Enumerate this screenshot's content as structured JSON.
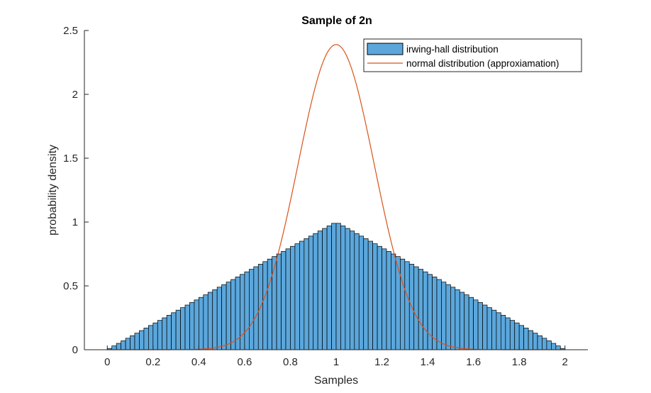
{
  "chart_data": {
    "type": "bar",
    "title": "Sample of 2n",
    "xlabel": "Samples",
    "ylabel": "probability density",
    "xlim": [
      -0.1,
      2.1
    ],
    "ylim": [
      0,
      2.5
    ],
    "xticks": [
      0,
      0.2,
      0.4,
      0.6,
      0.8,
      1,
      1.2,
      1.4,
      1.6,
      1.8,
      2
    ],
    "xtick_labels": [
      "0",
      "0.2",
      "0.4",
      "0.6",
      "0.8",
      "1",
      "1.2",
      "1.4",
      "1.6",
      "1.8",
      "2"
    ],
    "yticks": [
      0,
      0.5,
      1,
      1.5,
      2,
      2.5
    ],
    "ytick_labels": [
      "0",
      "0.5",
      "1",
      "1.5",
      "2",
      "2.5"
    ],
    "grid": false,
    "legend_position": "top-right",
    "series": [
      {
        "name": "irwing-hall distribution",
        "kind": "histogram",
        "bin_width": 0.02,
        "bin_edges_start": 0,
        "bin_edges_end": 2,
        "values": [
          0.01,
          0.03,
          0.05,
          0.07,
          0.09,
          0.11,
          0.13,
          0.15,
          0.17,
          0.19,
          0.21,
          0.23,
          0.25,
          0.27,
          0.29,
          0.31,
          0.33,
          0.35,
          0.37,
          0.39,
          0.41,
          0.43,
          0.45,
          0.47,
          0.49,
          0.51,
          0.53,
          0.55,
          0.57,
          0.59,
          0.61,
          0.63,
          0.65,
          0.67,
          0.69,
          0.71,
          0.73,
          0.75,
          0.77,
          0.79,
          0.81,
          0.83,
          0.85,
          0.87,
          0.89,
          0.91,
          0.93,
          0.95,
          0.97,
          0.99,
          0.99,
          0.97,
          0.95,
          0.93,
          0.91,
          0.89,
          0.87,
          0.85,
          0.83,
          0.81,
          0.79,
          0.77,
          0.75,
          0.73,
          0.71,
          0.69,
          0.67,
          0.65,
          0.63,
          0.61,
          0.59,
          0.57,
          0.55,
          0.53,
          0.51,
          0.49,
          0.47,
          0.45,
          0.43,
          0.41,
          0.39,
          0.37,
          0.35,
          0.33,
          0.31,
          0.29,
          0.27,
          0.25,
          0.23,
          0.21,
          0.19,
          0.17,
          0.15,
          0.13,
          0.11,
          0.09,
          0.07,
          0.05,
          0.03,
          0.01
        ],
        "color": "#5ba7dc",
        "edge_color": "#000000"
      },
      {
        "name": "normal distribution (approxiamation)",
        "kind": "line",
        "mean": 1,
        "std": 0.1667,
        "peak": 2.39,
        "x_range": [
          0,
          2
        ],
        "color": "#d95319"
      }
    ]
  }
}
